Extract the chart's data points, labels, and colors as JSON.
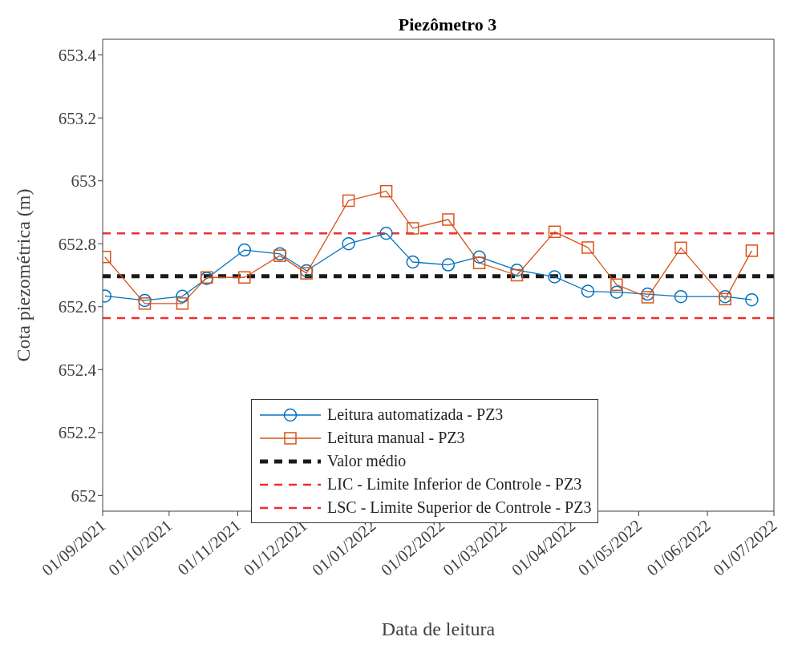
{
  "chart_data": {
    "type": "line",
    "title": "Piezômetro 3",
    "xlabel": "Data de leitura",
    "ylabel": "Cota piezométrica (m)",
    "series": [
      {
        "name": "Leitura automatizada - PZ3",
        "color": "#0072bd",
        "marker": "circle",
        "x": [
          "2021-09-02",
          "2021-09-20",
          "2021-10-07",
          "2021-10-18",
          "2021-11-04",
          "2021-11-20",
          "2021-12-02",
          "2021-12-21",
          "2022-01-07",
          "2022-01-19",
          "2022-02-04",
          "2022-02-18",
          "2022-03-07",
          "2022-03-24",
          "2022-04-08",
          "2022-04-21",
          "2022-05-05",
          "2022-05-20",
          "2022-06-09",
          "2022-06-21"
        ],
        "values": [
          652.634,
          652.62,
          652.633,
          652.69,
          652.78,
          652.768,
          652.714,
          652.8,
          652.833,
          652.742,
          652.733,
          652.758,
          652.716,
          652.695,
          652.649,
          652.646,
          652.64,
          652.632,
          652.632,
          652.622
        ]
      },
      {
        "name": "Leitura manual - PZ3",
        "color": "#d95319",
        "marker": "square",
        "x": [
          "2021-09-02",
          "2021-09-20",
          "2021-10-07",
          "2021-10-18",
          "2021-11-04",
          "2021-11-20",
          "2021-12-02",
          "2021-12-21",
          "2022-01-07",
          "2022-01-19",
          "2022-02-04",
          "2022-02-18",
          "2022-03-07",
          "2022-03-24",
          "2022-04-08",
          "2022-04-21",
          "2022-05-05",
          "2022-05-20",
          "2022-06-09",
          "2022-06-21"
        ],
        "values": [
          652.758,
          652.61,
          652.61,
          652.693,
          652.693,
          652.762,
          652.706,
          652.937,
          652.967,
          652.849,
          652.877,
          652.739,
          652.7,
          652.838,
          652.788,
          652.67,
          652.63,
          652.787,
          652.624,
          652.778
        ]
      }
    ],
    "ref_lines": [
      {
        "axis": "y",
        "value": 652.697,
        "label": "Valor médio",
        "color": "#1a1a1a",
        "line_style": "dashed"
      },
      {
        "axis": "y",
        "value": 652.564,
        "label": "LIC - Limite Inferior de Controle - PZ3",
        "color": "#ee2e2e",
        "line_style": "dashed"
      },
      {
        "axis": "y",
        "value": 652.833,
        "label": "LSC - Limite Superior de Controle - PZ3",
        "color": "#ee2e2e",
        "line_style": "dashed"
      }
    ],
    "xlim": [
      "2021-09-01",
      "2022-07-01"
    ],
    "xticks": [
      {
        "value": "2021-09-01",
        "label": "01/09/2021"
      },
      {
        "value": "2021-10-01",
        "label": "01/10/2021"
      },
      {
        "value": "2021-11-01",
        "label": "01/11/2021"
      },
      {
        "value": "2021-12-01",
        "label": "01/12/2021"
      },
      {
        "value": "2022-01-01",
        "label": "01/01/2022"
      },
      {
        "value": "2022-02-01",
        "label": "01/02/2022"
      },
      {
        "value": "2022-03-01",
        "label": "01/03/2022"
      },
      {
        "value": "2022-04-01",
        "label": "01/04/2022"
      },
      {
        "value": "2022-05-01",
        "label": "01/05/2022"
      },
      {
        "value": "2022-06-01",
        "label": "01/06/2022"
      },
      {
        "value": "2022-07-01",
        "label": "01/07/2022"
      }
    ],
    "ylim": [
      651.95,
      653.45
    ],
    "yticks": [
      652,
      652.2,
      652.4,
      652.6,
      652.8,
      653,
      653.2,
      653.4
    ],
    "grid": false,
    "legend": "bottom",
    "line_style": "solid"
  }
}
